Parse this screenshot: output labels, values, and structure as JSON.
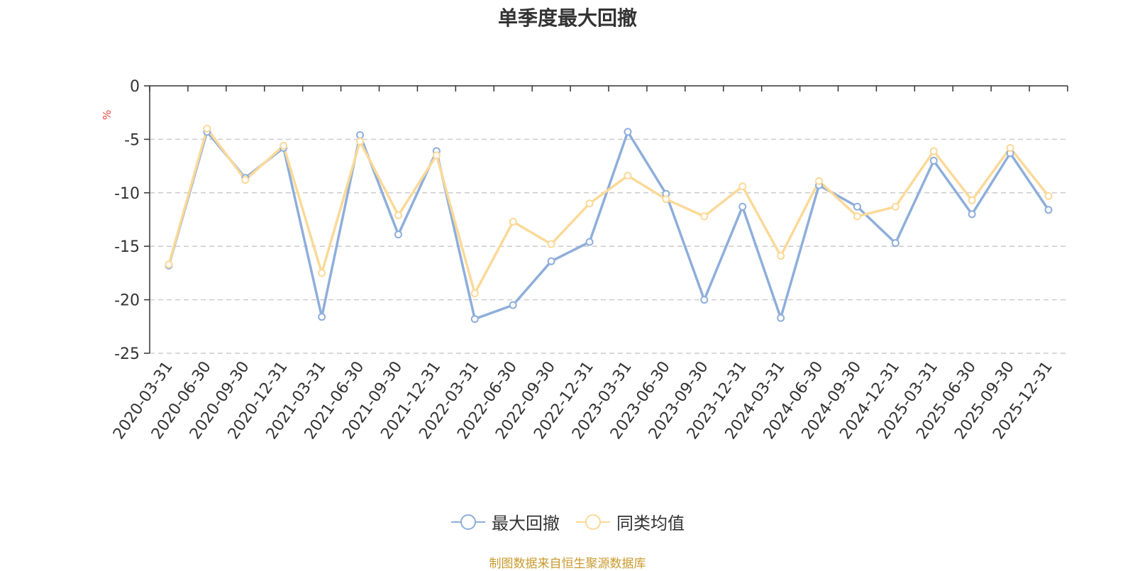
{
  "chart_data": {
    "type": "line",
    "title": "单季度最大回撤",
    "ylabel": "%",
    "xlabel": "",
    "ylim": [
      -25,
      0
    ],
    "yticks": [
      0,
      -5,
      -10,
      -15,
      -20,
      -25
    ],
    "categories": [
      "2020-03-31",
      "2020-06-30",
      "2020-09-30",
      "2020-12-31",
      "2021-03-31",
      "2021-06-30",
      "2021-09-30",
      "2021-12-31",
      "2022-03-31",
      "2022-06-30",
      "2022-09-30",
      "2022-12-31",
      "2023-03-31",
      "2023-06-30",
      "2023-09-30",
      "2023-12-31",
      "2024-03-31",
      "2024-06-30",
      "2024-09-30",
      "2024-12-31",
      "2025-03-31",
      "2025-06-30",
      "2025-09-30",
      "2025-12-31"
    ],
    "series": [
      {
        "name": "最大回撤",
        "color": "#8eaedb",
        "values": [
          -16.8,
          -4.3,
          -8.6,
          -5.8,
          -21.6,
          -4.6,
          -13.9,
          -6.1,
          -21.8,
          -20.5,
          -16.4,
          -14.6,
          -4.3,
          -10.1,
          -20.0,
          -11.3,
          -21.7,
          -9.3,
          -11.3,
          -14.7,
          -7.0,
          -12.0,
          -6.3,
          -11.6
        ]
      },
      {
        "name": "同类均值",
        "color": "#fbd998",
        "values": [
          -16.7,
          -4.0,
          -8.8,
          -5.6,
          -17.5,
          -5.2,
          -12.1,
          -6.5,
          -19.4,
          -12.7,
          -14.8,
          -11.0,
          -8.4,
          -10.6,
          -12.2,
          -9.4,
          -15.9,
          -8.9,
          -12.2,
          -11.3,
          -6.1,
          -10.7,
          -5.8,
          -10.3
        ]
      }
    ],
    "grid": "horizontal-dashed",
    "legend": "bottom-center"
  },
  "source": "制图数据来自恒生聚源数据库"
}
